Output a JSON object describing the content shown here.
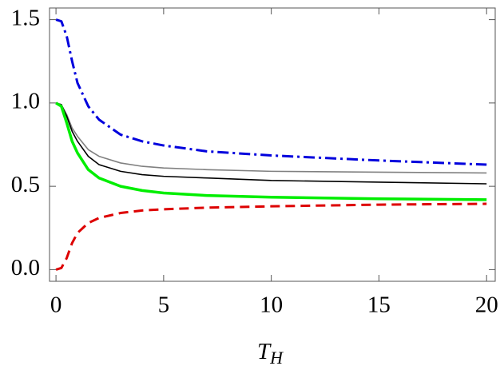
{
  "chart_data": {
    "type": "line",
    "xlabel": "T",
    "xlabel_sub": "H",
    "x": [
      0,
      0.25,
      0.5,
      0.75,
      1,
      1.5,
      2,
      3,
      4,
      5,
      7,
      10,
      15,
      20
    ],
    "series": [
      {
        "color": "#0000dd",
        "style": "dashdot",
        "width": 3,
        "values": [
          1.5,
          1.49,
          1.4,
          1.25,
          1.12,
          0.98,
          0.9,
          0.81,
          0.77,
          0.745,
          0.71,
          0.685,
          0.655,
          0.63
        ]
      },
      {
        "color": "#808080",
        "style": "solid",
        "width": 1.6,
        "values": [
          1.0,
          0.99,
          0.93,
          0.85,
          0.8,
          0.72,
          0.68,
          0.64,
          0.62,
          0.61,
          0.6,
          0.59,
          0.585,
          0.58
        ]
      },
      {
        "color": "#000000",
        "style": "solid",
        "width": 1.6,
        "values": [
          1.0,
          0.99,
          0.92,
          0.83,
          0.77,
          0.68,
          0.63,
          0.59,
          0.57,
          0.56,
          0.55,
          0.535,
          0.525,
          0.515
        ]
      },
      {
        "color": "#00ee00",
        "style": "solid",
        "width": 3.5,
        "values": [
          1.0,
          0.98,
          0.88,
          0.77,
          0.7,
          0.6,
          0.55,
          0.5,
          0.475,
          0.46,
          0.445,
          0.435,
          0.425,
          0.42
        ]
      },
      {
        "color": "#dd0000",
        "style": "dashed",
        "width": 3,
        "values": [
          0,
          0.01,
          0.07,
          0.16,
          0.22,
          0.28,
          0.31,
          0.34,
          0.355,
          0.362,
          0.372,
          0.38,
          0.39,
          0.395
        ]
      }
    ],
    "xlim": [
      -0.3,
      20.4
    ],
    "xticks": [
      0,
      5,
      10,
      15,
      20
    ],
    "ylim": [
      -0.07,
      1.57
    ],
    "yticks": [
      {
        "value": 0,
        "label": "0.0"
      },
      0.5,
      {
        "value": 1,
        "label": "1.0"
      },
      1.5
    ],
    "grid": false
  }
}
